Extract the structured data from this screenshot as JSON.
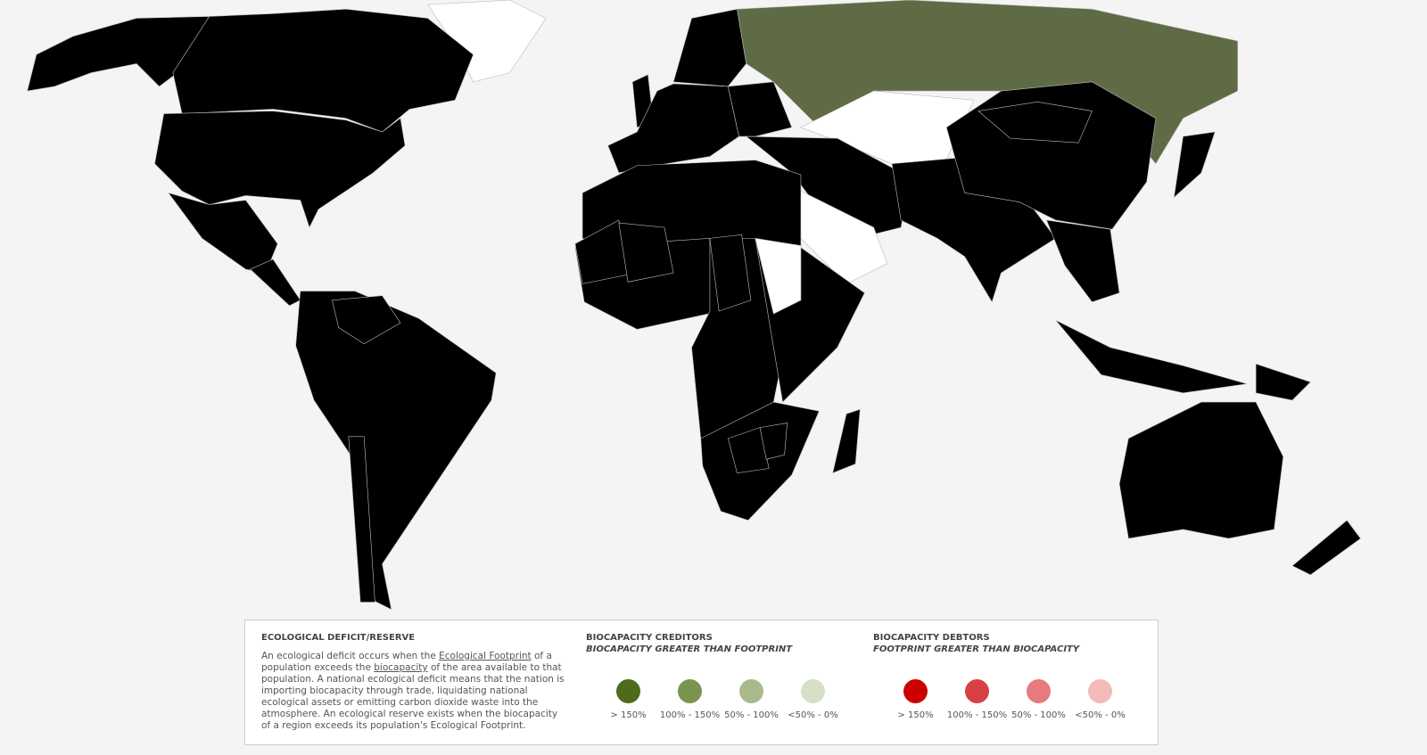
{
  "legend": {
    "title": "ECOLOGICAL DEFICIT/RESERVE",
    "description": [
      "An ecological deficit occurs when the ",
      "Ecological Footprint",
      " of a population exceeds the ",
      "biocapacity",
      " of the area available to that population. A national ecological deficit means that the nation is importing biocapacity through trade, liquidating national ecological assets or emitting carbon dioxide waste into the atmosphere. An ecological reserve exists when the biocapacity of a region exceeds its population's Ecological Footprint."
    ],
    "creditors": {
      "heading": "BIOCAPACITY CREDITORS",
      "subheading": "BIOCAPACITY GREATER THAN FOOTPRINT",
      "classes": [
        {
          "label": "> 150%",
          "color": "#4d6b1a"
        },
        {
          "label": "100% - 150%",
          "color": "#7a9450"
        },
        {
          "label": "50% - 100%",
          "color": "#a8b98c"
        },
        {
          "label": "<50% - 0%",
          "color": "#d6dfc8"
        }
      ]
    },
    "debtors": {
      "heading": "BIOCAPACITY DEBTORS",
      "subheading": "FOOTPRINT GREATER THAN BIOCAPACITY",
      "classes": [
        {
          "label": "> 150%",
          "color": "#cc0000"
        },
        {
          "label": "100% - 150%",
          "color": "#d94044"
        },
        {
          "label": "50% - 100%",
          "color": "#e67a7c"
        },
        {
          "label": "<50% - 0%",
          "color": "#f2baba"
        }
      ]
    }
  }
}
